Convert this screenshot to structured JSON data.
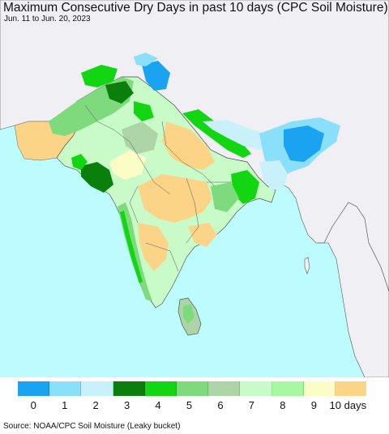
{
  "title": "Maximum Consecutive Dry Days in past 10 days (CPC Soil Moisture)",
  "subtitle": "Jun. 11 to Jun. 20, 2023",
  "source": "Source: NOAA/CPC Soil Moisture (Leaky bucket)",
  "colors": {
    "ocean": "#bdfcfe",
    "land_outside": "#f0eff4",
    "border": "#333333"
  },
  "legend": {
    "items": [
      {
        "label": "0",
        "color": "#1aa3f0"
      },
      {
        "label": "1",
        "color": "#8ae0fa"
      },
      {
        "label": "2",
        "color": "#c8f1fb"
      },
      {
        "label": "3",
        "color": "#0b7f0b"
      },
      {
        "label": "4",
        "color": "#11d611"
      },
      {
        "label": "5",
        "color": "#7fda7d"
      },
      {
        "label": "6",
        "color": "#acd4a6"
      },
      {
        "label": "7",
        "color": "#c9fbc8"
      },
      {
        "label": "8",
        "color": "#a7f6a0"
      },
      {
        "label": "9",
        "color": "#fcfdc6"
      },
      {
        "label": "10 days",
        "color": "#fbd487"
      }
    ]
  }
}
